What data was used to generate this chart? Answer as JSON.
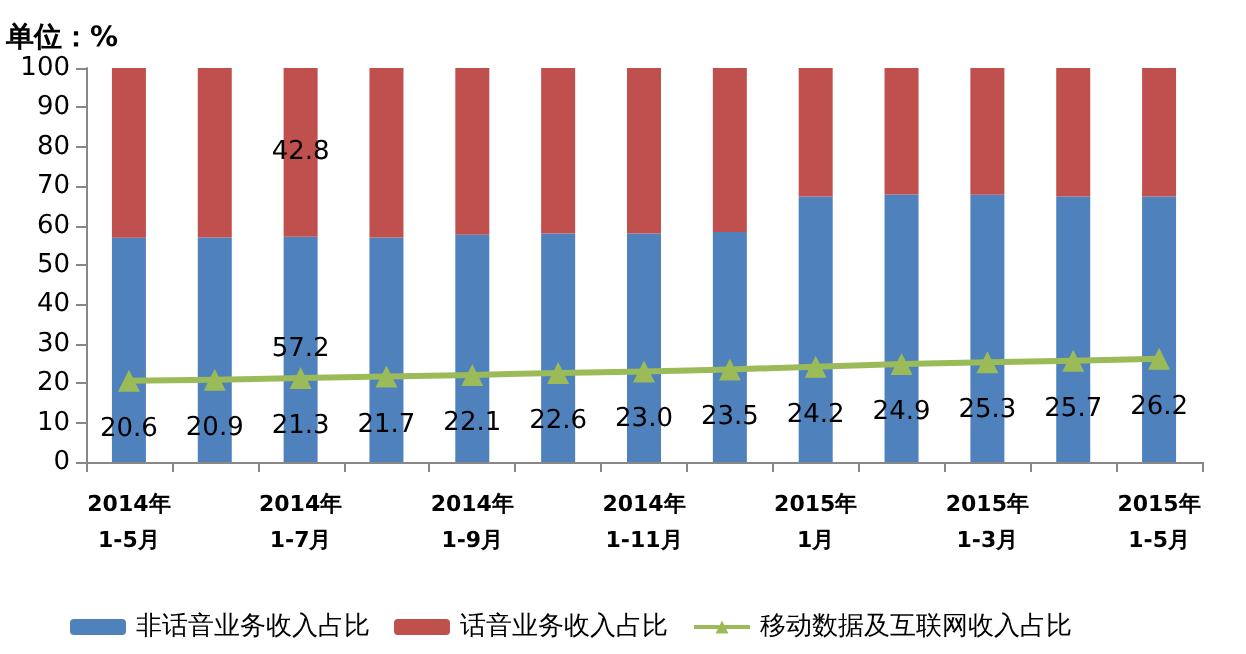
{
  "chart_data": {
    "type": "bar",
    "ylabel": "单位：%",
    "stacked": true,
    "categories": [
      "2014年\n1-5月",
      null,
      "2014年\n1-7月",
      null,
      "2014年\n1-9月",
      null,
      "2014年\n1-11月",
      null,
      "2015年\n1月",
      null,
      "2015年\n1-3月",
      null,
      "2015年\n1-5月"
    ],
    "series": [
      {
        "name": "非话音业务收入占比",
        "color": "#4f81bd",
        "values": [
          56.9,
          57.0,
          57.2,
          57.0,
          57.7,
          58.0,
          58.0,
          58.4,
          67.4,
          67.9,
          67.8,
          67.4,
          67.4
        ],
        "value_labels": [
          null,
          null,
          "57.2",
          null,
          null,
          null,
          null,
          null,
          null,
          null,
          null,
          null,
          null
        ]
      },
      {
        "name": "话音业务收入占比",
        "color": "#c0504d",
        "values": [
          43.1,
          43.0,
          42.8,
          43.0,
          42.3,
          42.0,
          42.0,
          41.6,
          32.6,
          32.1,
          32.2,
          32.6,
          32.6
        ],
        "value_labels": [
          null,
          null,
          "42.8",
          null,
          null,
          null,
          null,
          null,
          null,
          null,
          null,
          null,
          null
        ]
      },
      {
        "name": "移动数据及互联网收入占比",
        "type": "line",
        "color": "#9bbb59",
        "marker": "triangle",
        "values": [
          20.6,
          20.9,
          21.3,
          21.7,
          22.1,
          22.6,
          23.0,
          23.5,
          24.2,
          24.9,
          25.3,
          25.7,
          26.2
        ],
        "value_labels": [
          "20.6",
          "20.9",
          "21.3",
          "21.7",
          "22.1",
          "22.6",
          "23.0",
          "23.5",
          "24.2",
          "24.9",
          "25.3",
          "25.7",
          "26.2"
        ]
      }
    ],
    "ylim": [
      0,
      100
    ],
    "yticks": [
      0,
      10,
      20,
      30,
      40,
      50,
      60,
      70,
      80,
      90,
      100
    ],
    "grid": false,
    "legend": "bottom"
  }
}
